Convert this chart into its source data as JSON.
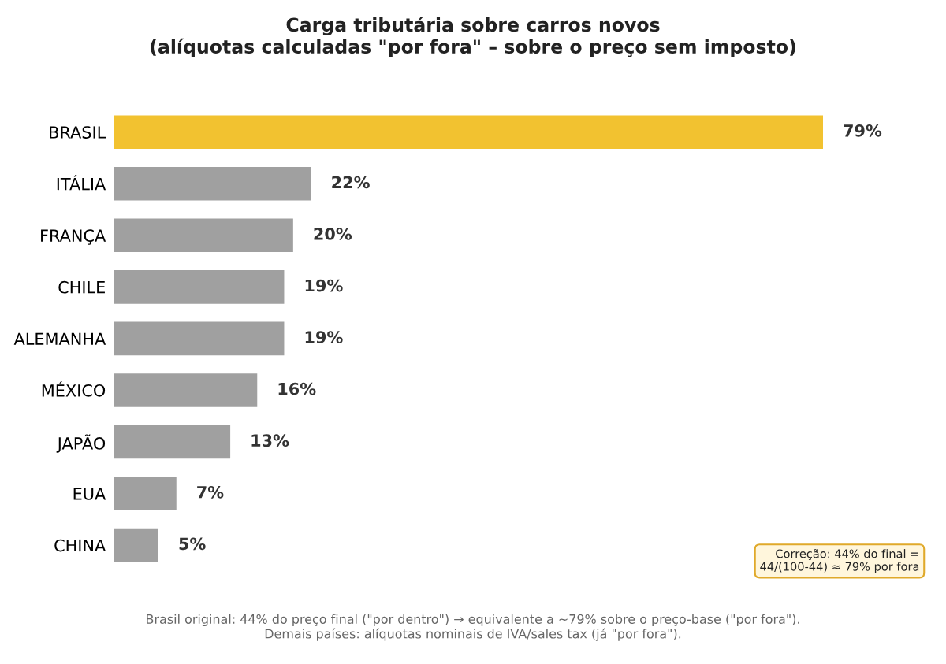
{
  "chart_data": {
    "type": "bar",
    "orientation": "horizontal",
    "title": "Carga tributária sobre carros novos\n(alíquotas calculadas \"por fora\" – sobre o preço sem imposto)",
    "categories": [
      "BRASIL",
      "ITÁLIA",
      "FRANÇA",
      "CHILE",
      "ALEMANHA",
      "MÉXICO",
      "JAPÃO",
      "EUA",
      "CHINA"
    ],
    "values": [
      79,
      22,
      20,
      19,
      19,
      16,
      13,
      7,
      5
    ],
    "colors": [
      "#f2c230",
      "#a0a0a0",
      "#a0a0a0",
      "#a0a0a0",
      "#a0a0a0",
      "#a0a0a0",
      "#a0a0a0",
      "#a0a0a0",
      "#a0a0a0"
    ],
    "value_labels": [
      "79%",
      "22%",
      "20%",
      "19%",
      "19%",
      "16%",
      "13%",
      "7%",
      "5%"
    ],
    "grid": false,
    "legend": false,
    "tick_labels": "y",
    "annotations": [
      "Correção: 44% do final =\n44/(100-44) ≈ 79% por fora",
      "Brasil original: 44% do preço final (\"por dentro\") → equivalente a ~79% sobre o preço-base (\"por fora\").\nDemais países: alíquotas nominais de IVA/sales tax (já \"por fora\")."
    ]
  }
}
